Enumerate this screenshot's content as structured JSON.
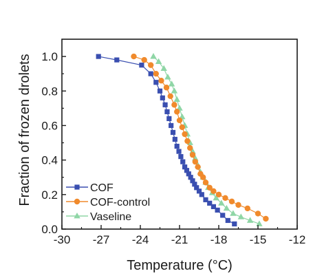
{
  "chart_data": {
    "type": "line",
    "xlabel": "Temperature (°C)",
    "ylabel": "Fraction of frozen drolets",
    "xlim": [
      -30,
      -12
    ],
    "ylim": [
      0.0,
      1.1
    ],
    "xticks": [
      -30,
      -27,
      -24,
      -21,
      -18,
      -15,
      -12
    ],
    "xtick_labels": [
      "-30",
      "-27",
      "-24",
      "-21",
      "-18",
      "-15",
      "-12"
    ],
    "yticks": [
      0.0,
      0.2,
      0.4,
      0.6,
      0.8,
      1.0
    ],
    "ytick_labels": [
      "0.0",
      "0.2",
      "0.4",
      "0.6",
      "0.8",
      "1.0"
    ],
    "grid": false,
    "legend_position": "bottom-left",
    "series": [
      {
        "name": "COF",
        "color": "#3a4fb0",
        "marker": "square",
        "x": [
          -27.2,
          -25.8,
          -23.9,
          -23.2,
          -22.8,
          -22.5,
          -22.3,
          -22.1,
          -21.95,
          -21.8,
          -21.65,
          -21.5,
          -21.35,
          -21.2,
          -21.05,
          -20.9,
          -20.75,
          -20.6,
          -20.45,
          -20.3,
          -20.15,
          -20.0,
          -19.85,
          -19.7,
          -19.5,
          -19.3,
          -19.0,
          -18.7,
          -18.4,
          -18.1,
          -17.7,
          -17.3,
          -16.8
        ],
        "y": [
          1.0,
          0.98,
          0.95,
          0.9,
          0.85,
          0.8,
          0.76,
          0.72,
          0.68,
          0.64,
          0.6,
          0.56,
          0.52,
          0.48,
          0.45,
          0.42,
          0.39,
          0.36,
          0.34,
          0.32,
          0.3,
          0.28,
          0.26,
          0.24,
          0.22,
          0.2,
          0.17,
          0.15,
          0.13,
          0.11,
          0.08,
          0.05,
          0.03
        ]
      },
      {
        "name": "COF-control",
        "color": "#f08a2c",
        "marker": "circle",
        "x": [
          -24.5,
          -23.7,
          -23.2,
          -22.8,
          -22.4,
          -22.0,
          -21.7,
          -21.4,
          -21.2,
          -21.0,
          -20.8,
          -20.6,
          -20.4,
          -20.2,
          -20.0,
          -19.8,
          -19.6,
          -19.4,
          -19.2,
          -19.0,
          -18.7,
          -18.4,
          -18.0,
          -17.5,
          -17.0,
          -16.5,
          -15.8,
          -15.0,
          -14.4
        ],
        "y": [
          1.0,
          0.98,
          0.95,
          0.9,
          0.86,
          0.82,
          0.77,
          0.72,
          0.68,
          0.63,
          0.59,
          0.55,
          0.51,
          0.47,
          0.43,
          0.39,
          0.36,
          0.32,
          0.3,
          0.27,
          0.24,
          0.22,
          0.2,
          0.18,
          0.16,
          0.14,
          0.12,
          0.09,
          0.06
        ]
      },
      {
        "name": "Vaseline",
        "color": "#8fd6a6",
        "marker": "triangle",
        "x": [
          -23.0,
          -22.6,
          -22.2,
          -21.9,
          -21.6,
          -21.4,
          -21.2,
          -21.0,
          -20.8,
          -20.6,
          -20.4,
          -20.2,
          -20.0,
          -19.8,
          -19.6,
          -19.4,
          -19.2,
          -19.0,
          -18.8,
          -18.5,
          -18.2,
          -17.8,
          -17.4,
          -16.9,
          -16.3,
          -15.6,
          -14.9
        ],
        "y": [
          1.0,
          0.97,
          0.93,
          0.88,
          0.84,
          0.8,
          0.75,
          0.7,
          0.65,
          0.6,
          0.55,
          0.5,
          0.45,
          0.41,
          0.37,
          0.33,
          0.3,
          0.27,
          0.24,
          0.21,
          0.18,
          0.15,
          0.12,
          0.09,
          0.07,
          0.05,
          0.03
        ]
      }
    ]
  }
}
